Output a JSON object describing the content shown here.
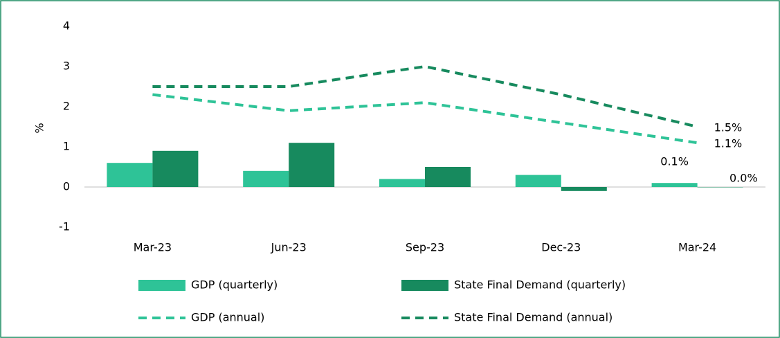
{
  "chart_data": {
    "type": "bar",
    "categories": [
      "Mar-23",
      "Jun-23",
      "Sep-23",
      "Dec-23",
      "Mar-24"
    ],
    "y_label": "%",
    "ylim": [
      -1,
      4
    ],
    "yticks": [
      -1,
      0,
      1,
      2,
      3,
      4
    ],
    "series": [
      {
        "name": "GDP (quarterly)",
        "type": "bar",
        "color": "#2ec397",
        "values": [
          0.6,
          0.4,
          0.2,
          0.3,
          0.1
        ],
        "value_labels": [
          null,
          null,
          null,
          null,
          "0.1%"
        ]
      },
      {
        "name": "State Final Demand (quarterly)",
        "type": "bar",
        "color": "#178a5e",
        "values": [
          0.9,
          1.1,
          0.5,
          -0.1,
          0.0
        ],
        "value_labels": [
          null,
          null,
          null,
          null,
          "0.0%"
        ]
      },
      {
        "name": "GDP (annual)",
        "type": "line",
        "color": "#2ec397",
        "values": [
          2.3,
          1.9,
          2.1,
          1.6,
          1.1
        ],
        "value_labels": [
          null,
          null,
          null,
          null,
          "1.1%"
        ]
      },
      {
        "name": "State Final Demand (annual)",
        "type": "line",
        "color": "#178a5e",
        "values": [
          2.5,
          2.5,
          3.0,
          2.3,
          1.5
        ],
        "value_labels": [
          null,
          null,
          null,
          null,
          "1.5%"
        ]
      }
    ]
  }
}
